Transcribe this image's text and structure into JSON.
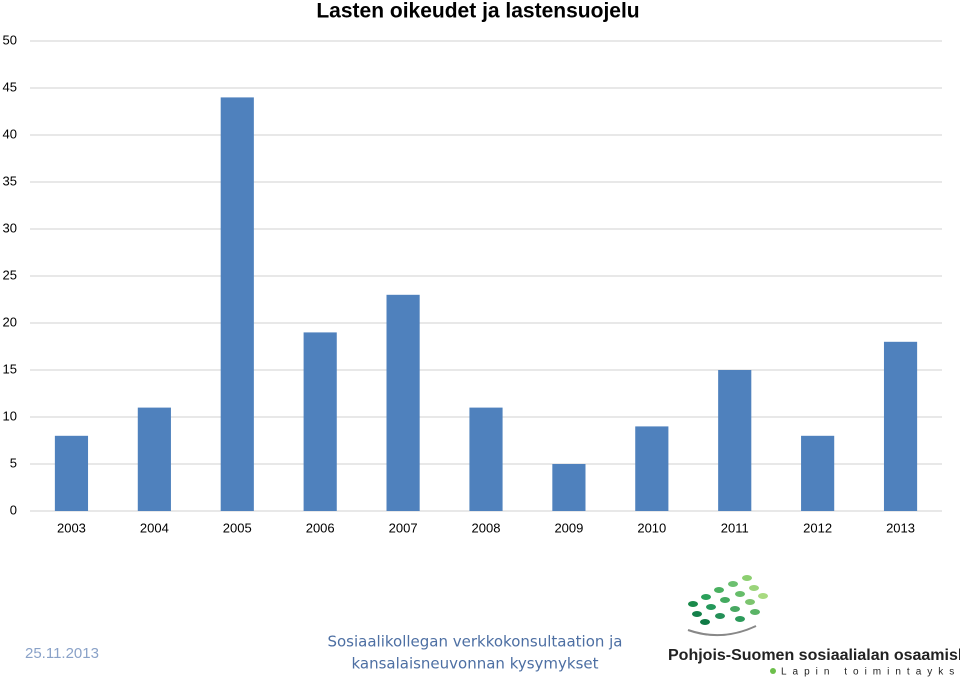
{
  "chart_data": {
    "type": "bar",
    "title": "Lasten oikeudet ja lastensuojelu",
    "categories": [
      "2003",
      "2004",
      "2005",
      "2006",
      "2007",
      "2008",
      "2009",
      "2010",
      "2011",
      "2012",
      "2013"
    ],
    "values": [
      8,
      11,
      44,
      19,
      23,
      11,
      5,
      9,
      15,
      8,
      18
    ],
    "color": "#4f81bd",
    "ylim": [
      0,
      50
    ],
    "yticks": [
      0,
      5,
      10,
      15,
      20,
      25,
      30,
      35,
      40,
      45,
      50
    ],
    "grid": true
  },
  "footer": {
    "date": "25.11.2013",
    "caption": [
      "Sosiaalikollegan verkkokonsultaation ja",
      "kansalaisneuvonnan kysymykset"
    ],
    "logo_title": "Pohjois-Suomen sosiaalialan osaamiskeskus",
    "logo_subtitle": "Lapin toimintayksikkö"
  }
}
